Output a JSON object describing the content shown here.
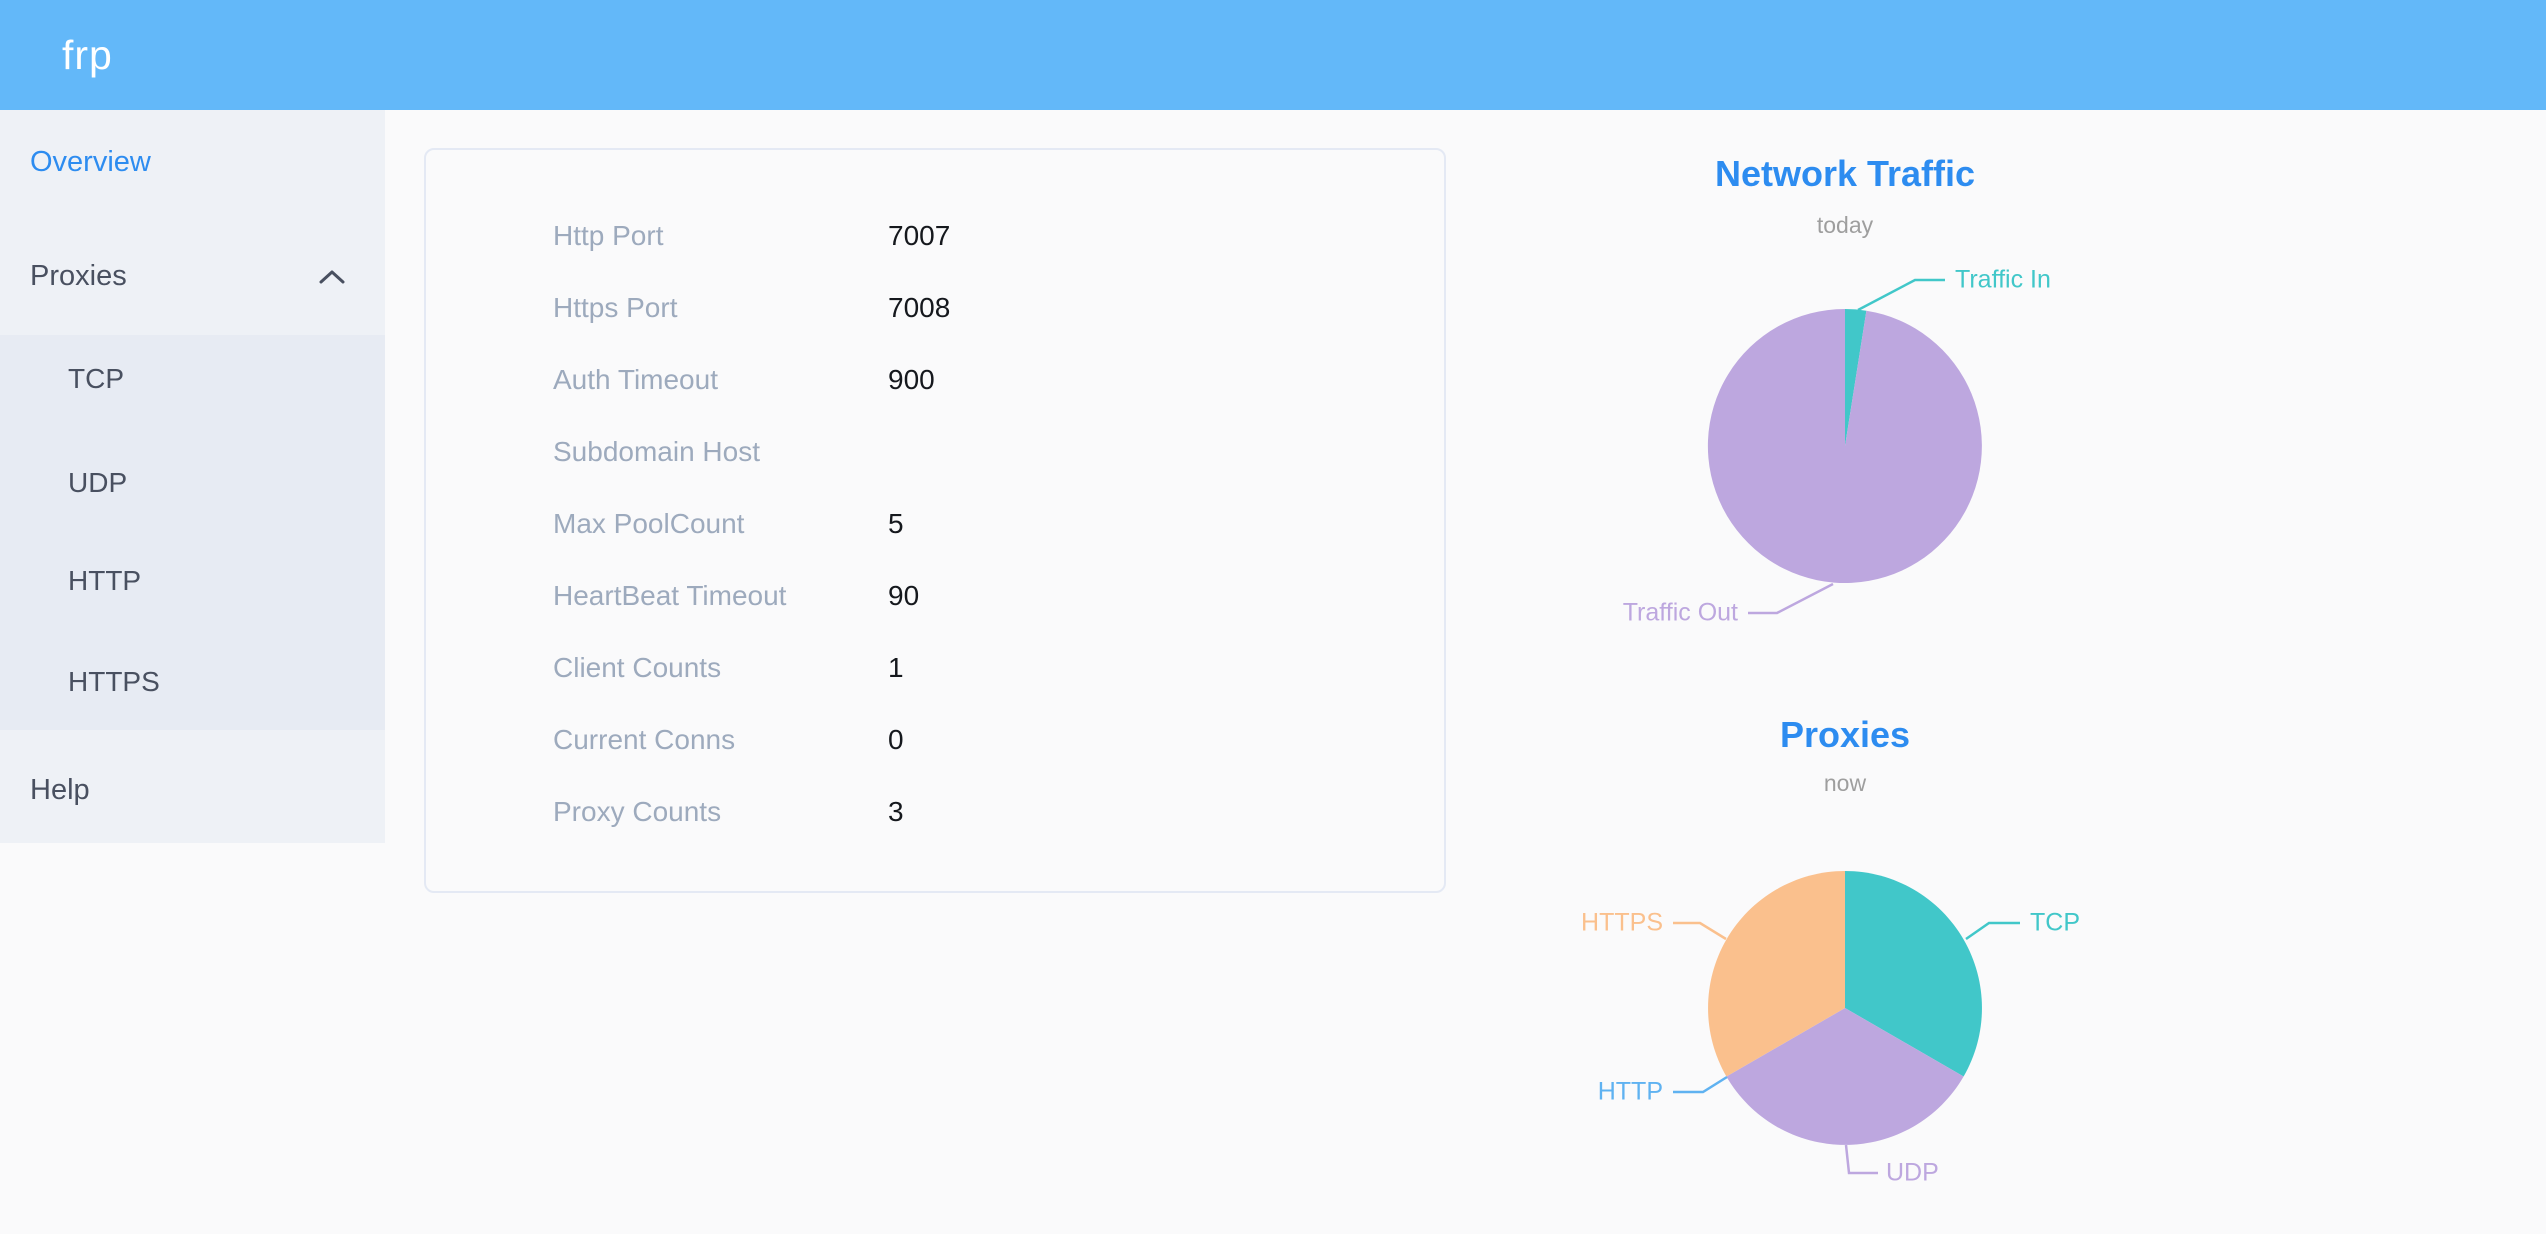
{
  "app": {
    "logo": "frp"
  },
  "theme": {
    "header_blue": "#63b8f9",
    "primary_blue": "#2d8cf0",
    "sidebar_bg": "#eef1f6",
    "submenu_bg": "#e7ebf3",
    "menu_text": "#495060",
    "table_label_gray": "#9daabd",
    "subtitle_gray": "#9e9e9e"
  },
  "sidebar": {
    "items": [
      {
        "label": "Overview",
        "active": true
      },
      {
        "label": "Proxies",
        "expanded": true,
        "children": [
          "TCP",
          "UDP",
          "HTTP",
          "HTTPS"
        ]
      },
      {
        "label": "Help",
        "active": false
      }
    ]
  },
  "overview_table": {
    "rows": [
      {
        "label": "Http Port",
        "value": "7007"
      },
      {
        "label": "Https Port",
        "value": "7008"
      },
      {
        "label": "Auth Timeout",
        "value": "900"
      },
      {
        "label": "Subdomain Host",
        "value": ""
      },
      {
        "label": "Max PoolCount",
        "value": "5"
      },
      {
        "label": "HeartBeat Timeout",
        "value": "90"
      },
      {
        "label": "Client Counts",
        "value": "1"
      },
      {
        "label": "Current Conns",
        "value": "0"
      },
      {
        "label": "Proxy Counts",
        "value": "3"
      }
    ]
  },
  "chart_data": [
    {
      "type": "pie",
      "title": "Network Traffic",
      "subtitle": "today",
      "labels_position": "outside",
      "clockwise_from_top": true,
      "values_are_percent_estimates": true,
      "series": [
        {
          "name": "Traffic In",
          "value": 2.5,
          "color": "#41c7c9"
        },
        {
          "name": "Traffic Out",
          "value": 97.5,
          "color": "#bda7df"
        }
      ]
    },
    {
      "type": "pie",
      "title": "Proxies",
      "subtitle": "now",
      "labels_position": "outside",
      "clockwise_from_top": true,
      "values_are_proxy_counts": true,
      "series": [
        {
          "name": "TCP",
          "value": 1,
          "color": "#41c7c9"
        },
        {
          "name": "UDP",
          "value": 1,
          "color": "#bda7df"
        },
        {
          "name": "HTTP",
          "value": 0,
          "color": "#5fb2f1"
        },
        {
          "name": "HTTPS",
          "value": 1,
          "color": "#fac08d"
        }
      ]
    }
  ]
}
